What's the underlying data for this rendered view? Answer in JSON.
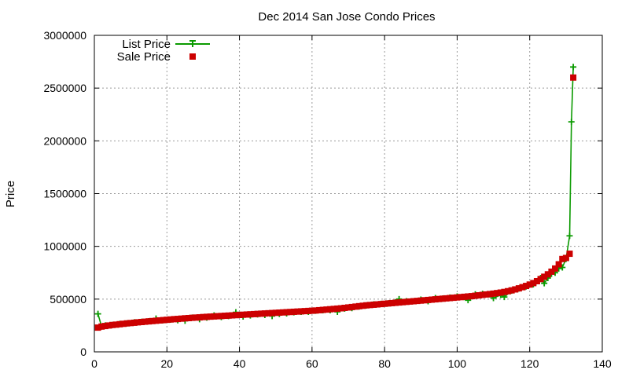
{
  "chart_data": {
    "type": "line",
    "title": "Dec 2014 San Jose Condo Prices",
    "xlabel": "",
    "ylabel": "Price",
    "xlim": [
      0,
      140
    ],
    "ylim": [
      0,
      3000000
    ],
    "x_ticks": [
      0,
      20,
      40,
      60,
      80,
      100,
      120,
      140
    ],
    "y_ticks": [
      0,
      500000,
      1000000,
      1500000,
      2000000,
      2500000,
      3000000
    ],
    "grid": true,
    "legend_position": "top-left",
    "series": [
      {
        "name": "List Price",
        "style": "line+plus",
        "color": "#0a9a00",
        "points": [
          [
            1,
            360000
          ],
          [
            2,
            240000
          ],
          [
            3,
            250000
          ],
          [
            5,
            255000
          ],
          [
            7,
            265000
          ],
          [
            9,
            270000
          ],
          [
            11,
            280000
          ],
          [
            13,
            285000
          ],
          [
            15,
            290000
          ],
          [
            17,
            315000
          ],
          [
            19,
            300000
          ],
          [
            21,
            305000
          ],
          [
            23,
            300000
          ],
          [
            25,
            295000
          ],
          [
            27,
            325000
          ],
          [
            29,
            310000
          ],
          [
            31,
            325000
          ],
          [
            33,
            345000
          ],
          [
            35,
            330000
          ],
          [
            37,
            340000
          ],
          [
            39,
            375000
          ],
          [
            41,
            335000
          ],
          [
            43,
            345000
          ],
          [
            45,
            355000
          ],
          [
            47,
            350000
          ],
          [
            49,
            340000
          ],
          [
            51,
            360000
          ],
          [
            53,
            365000
          ],
          [
            55,
            375000
          ],
          [
            57,
            380000
          ],
          [
            59,
            380000
          ],
          [
            61,
            390000
          ],
          [
            63,
            395000
          ],
          [
            65,
            395000
          ],
          [
            67,
            380000
          ],
          [
            69,
            410000
          ],
          [
            71,
            415000
          ],
          [
            73,
            430000
          ],
          [
            75,
            440000
          ],
          [
            77,
            450000
          ],
          [
            79,
            455000
          ],
          [
            81,
            460000
          ],
          [
            83,
            470000
          ],
          [
            84,
            500000
          ],
          [
            86,
            480000
          ],
          [
            88,
            480000
          ],
          [
            90,
            495000
          ],
          [
            92,
            480000
          ],
          [
            94,
            510000
          ],
          [
            96,
            505000
          ],
          [
            98,
            515000
          ],
          [
            100,
            525000
          ],
          [
            102,
            520000
          ],
          [
            103,
            490000
          ],
          [
            105,
            545000
          ],
          [
            107,
            550000
          ],
          [
            109,
            545000
          ],
          [
            110,
            510000
          ],
          [
            112,
            540000
          ],
          [
            113,
            520000
          ],
          [
            115,
            580000
          ],
          [
            117,
            600000
          ],
          [
            119,
            620000
          ],
          [
            121,
            640000
          ],
          [
            123,
            700000
          ],
          [
            124,
            650000
          ],
          [
            125,
            700000
          ],
          [
            126,
            740000
          ],
          [
            127,
            750000
          ],
          [
            128,
            790000
          ],
          [
            129,
            800000
          ],
          [
            130,
            880000
          ],
          [
            131,
            1100000
          ],
          [
            131.5,
            2180000
          ],
          [
            132,
            2700000
          ]
        ]
      },
      {
        "name": "Sale Price",
        "style": "square",
        "color": "#cc0000",
        "points": [
          [
            1,
            230000
          ],
          [
            2,
            240000
          ],
          [
            3,
            245000
          ],
          [
            4,
            250000
          ],
          [
            5,
            255000
          ],
          [
            6,
            258000
          ],
          [
            7,
            262000
          ],
          [
            8,
            266000
          ],
          [
            9,
            270000
          ],
          [
            10,
            273000
          ],
          [
            11,
            276000
          ],
          [
            12,
            280000
          ],
          [
            13,
            283000
          ],
          [
            14,
            286000
          ],
          [
            15,
            289000
          ],
          [
            16,
            292000
          ],
          [
            17,
            295000
          ],
          [
            18,
            298000
          ],
          [
            19,
            301000
          ],
          [
            20,
            304000
          ],
          [
            21,
            307000
          ],
          [
            22,
            310000
          ],
          [
            23,
            312000
          ],
          [
            24,
            315000
          ],
          [
            25,
            318000
          ],
          [
            26,
            320000
          ],
          [
            27,
            323000
          ],
          [
            28,
            325000
          ],
          [
            29,
            327000
          ],
          [
            30,
            330000
          ],
          [
            31,
            332000
          ],
          [
            32,
            334000
          ],
          [
            33,
            336000
          ],
          [
            34,
            338000
          ],
          [
            35,
            340000
          ],
          [
            36,
            342000
          ],
          [
            37,
            344000
          ],
          [
            38,
            346000
          ],
          [
            39,
            348000
          ],
          [
            40,
            350000
          ],
          [
            41,
            352000
          ],
          [
            42,
            354000
          ],
          [
            43,
            356000
          ],
          [
            44,
            358000
          ],
          [
            45,
            360000
          ],
          [
            46,
            362000
          ],
          [
            47,
            364000
          ],
          [
            48,
            366000
          ],
          [
            49,
            368000
          ],
          [
            50,
            370000
          ],
          [
            51,
            372000
          ],
          [
            52,
            374000
          ],
          [
            53,
            376000
          ],
          [
            54,
            378000
          ],
          [
            55,
            380000
          ],
          [
            56,
            382000
          ],
          [
            57,
            384000
          ],
          [
            58,
            386000
          ],
          [
            59,
            388000
          ],
          [
            60,
            390000
          ],
          [
            61,
            392000
          ],
          [
            62,
            395000
          ],
          [
            63,
            398000
          ],
          [
            64,
            401000
          ],
          [
            65,
            404000
          ],
          [
            66,
            407000
          ],
          [
            67,
            410000
          ],
          [
            68,
            413000
          ],
          [
            69,
            417000
          ],
          [
            70,
            421000
          ],
          [
            71,
            425000
          ],
          [
            72,
            429000
          ],
          [
            73,
            433000
          ],
          [
            74,
            437000
          ],
          [
            75,
            441000
          ],
          [
            76,
            444000
          ],
          [
            77,
            447000
          ],
          [
            78,
            450000
          ],
          [
            79,
            453000
          ],
          [
            80,
            456000
          ],
          [
            81,
            459000
          ],
          [
            82,
            462000
          ],
          [
            83,
            465000
          ],
          [
            84,
            468000
          ],
          [
            85,
            471000
          ],
          [
            86,
            474000
          ],
          [
            87,
            477000
          ],
          [
            88,
            480000
          ],
          [
            89,
            483000
          ],
          [
            90,
            486000
          ],
          [
            91,
            489000
          ],
          [
            92,
            492000
          ],
          [
            93,
            495000
          ],
          [
            94,
            498000
          ],
          [
            95,
            501000
          ],
          [
            96,
            504000
          ],
          [
            97,
            507000
          ],
          [
            98,
            510000
          ],
          [
            99,
            513000
          ],
          [
            100,
            516000
          ],
          [
            101,
            519000
          ],
          [
            102,
            522000
          ],
          [
            103,
            525000
          ],
          [
            104,
            528000
          ],
          [
            105,
            532000
          ],
          [
            106,
            536000
          ],
          [
            107,
            540000
          ],
          [
            108,
            544000
          ],
          [
            109,
            548000
          ],
          [
            110,
            552000
          ],
          [
            111,
            557000
          ],
          [
            112,
            562000
          ],
          [
            113,
            568000
          ],
          [
            114,
            575000
          ],
          [
            115,
            583000
          ],
          [
            116,
            592000
          ],
          [
            117,
            602000
          ],
          [
            118,
            613000
          ],
          [
            119,
            625000
          ],
          [
            120,
            638000
          ],
          [
            121,
            652000
          ],
          [
            122,
            670000
          ],
          [
            123,
            690000
          ],
          [
            124,
            712000
          ],
          [
            125,
            735000
          ],
          [
            126,
            760000
          ],
          [
            127,
            790000
          ],
          [
            128,
            830000
          ],
          [
            129,
            880000
          ],
          [
            130,
            890000
          ],
          [
            131,
            930000
          ],
          [
            132,
            2600000
          ]
        ]
      }
    ]
  }
}
